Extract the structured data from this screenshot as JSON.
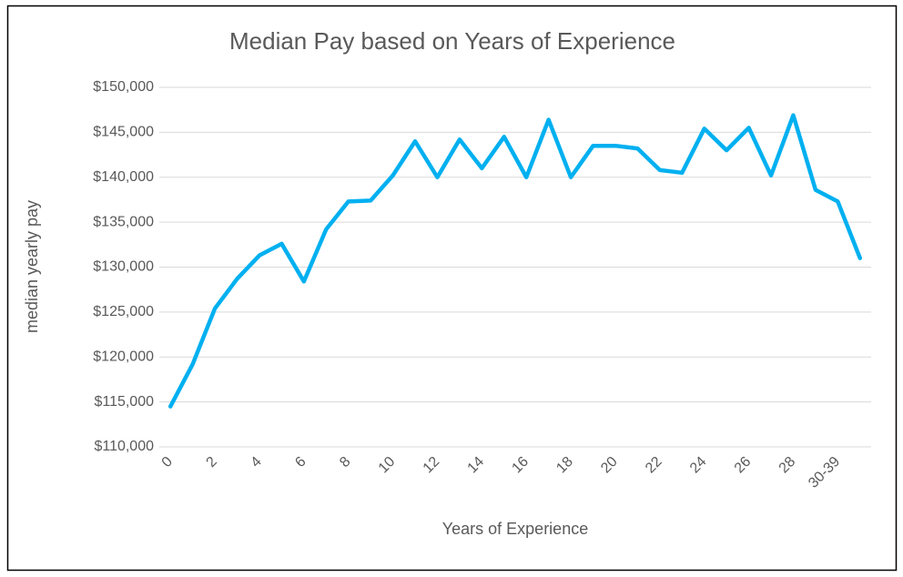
{
  "chart_data": {
    "type": "line",
    "title": "Median Pay based on Years of Experience",
    "x_label": "Years of Experience",
    "y_label": "median yearly pay",
    "categories": [
      "0",
      null,
      "2",
      null,
      "4",
      null,
      "6",
      null,
      "8",
      null,
      "10",
      null,
      "12",
      null,
      "14",
      null,
      "16",
      null,
      "18",
      null,
      "20",
      null,
      "22",
      null,
      "24",
      null,
      "26",
      null,
      "28",
      null,
      "30-39",
      null
    ],
    "series": [
      {
        "name": "median yearly pay",
        "color": "#00b0f0",
        "values": [
          114500,
          119200,
          125400,
          128700,
          131300,
          132600,
          128400,
          134200,
          137300,
          137400,
          140200,
          144000,
          140000,
          144200,
          141000,
          144500,
          140000,
          146400,
          140000,
          143500,
          143500,
          143200,
          140800,
          140500,
          145400,
          143000,
          145500,
          140200,
          146900,
          138600,
          137300,
          131000
        ]
      }
    ],
    "ylim": [
      110000,
      150000
    ],
    "yticks": [
      {
        "value": 110000,
        "label": "$110,000"
      },
      {
        "value": 115000,
        "label": "$115,000"
      },
      {
        "value": 120000,
        "label": "$120,000"
      },
      {
        "value": 125000,
        "label": "$125,000"
      },
      {
        "value": 130000,
        "label": "$130,000"
      },
      {
        "value": 135000,
        "label": "$135,000"
      },
      {
        "value": 140000,
        "label": "$140,000"
      },
      {
        "value": 145000,
        "label": "$145,000"
      },
      {
        "value": 150000,
        "label": "$150,000"
      }
    ],
    "grid": true
  }
}
